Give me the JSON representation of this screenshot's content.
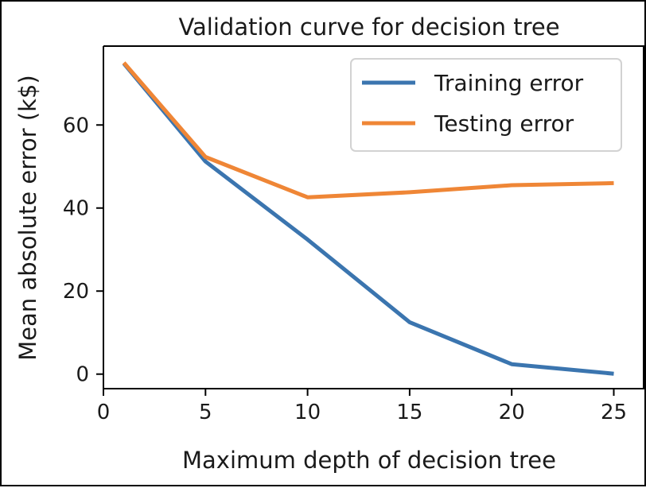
{
  "chart_data": {
    "type": "line",
    "title": "Validation curve for decision tree",
    "xlabel": "Maximum depth of decision tree",
    "ylabel": "Mean absolute error (k$)",
    "xlim": [
      0,
      26.5
    ],
    "ylim": [
      -3.5,
      79
    ],
    "xticks": [
      0,
      5,
      10,
      15,
      20,
      25
    ],
    "yticks": [
      0,
      20,
      40,
      60
    ],
    "grid": false,
    "legend_position": "upper right",
    "x": [
      1,
      5,
      10,
      15,
      20,
      25
    ],
    "series": [
      {
        "name": "Training error",
        "color": "#3b75af",
        "values": [
          74.8,
          51.2,
          32.4,
          12.5,
          2.4,
          0.1
        ]
      },
      {
        "name": "Testing error",
        "color": "#ef8636",
        "values": [
          75.0,
          52.3,
          42.6,
          43.8,
          45.5,
          46.0
        ]
      }
    ]
  }
}
